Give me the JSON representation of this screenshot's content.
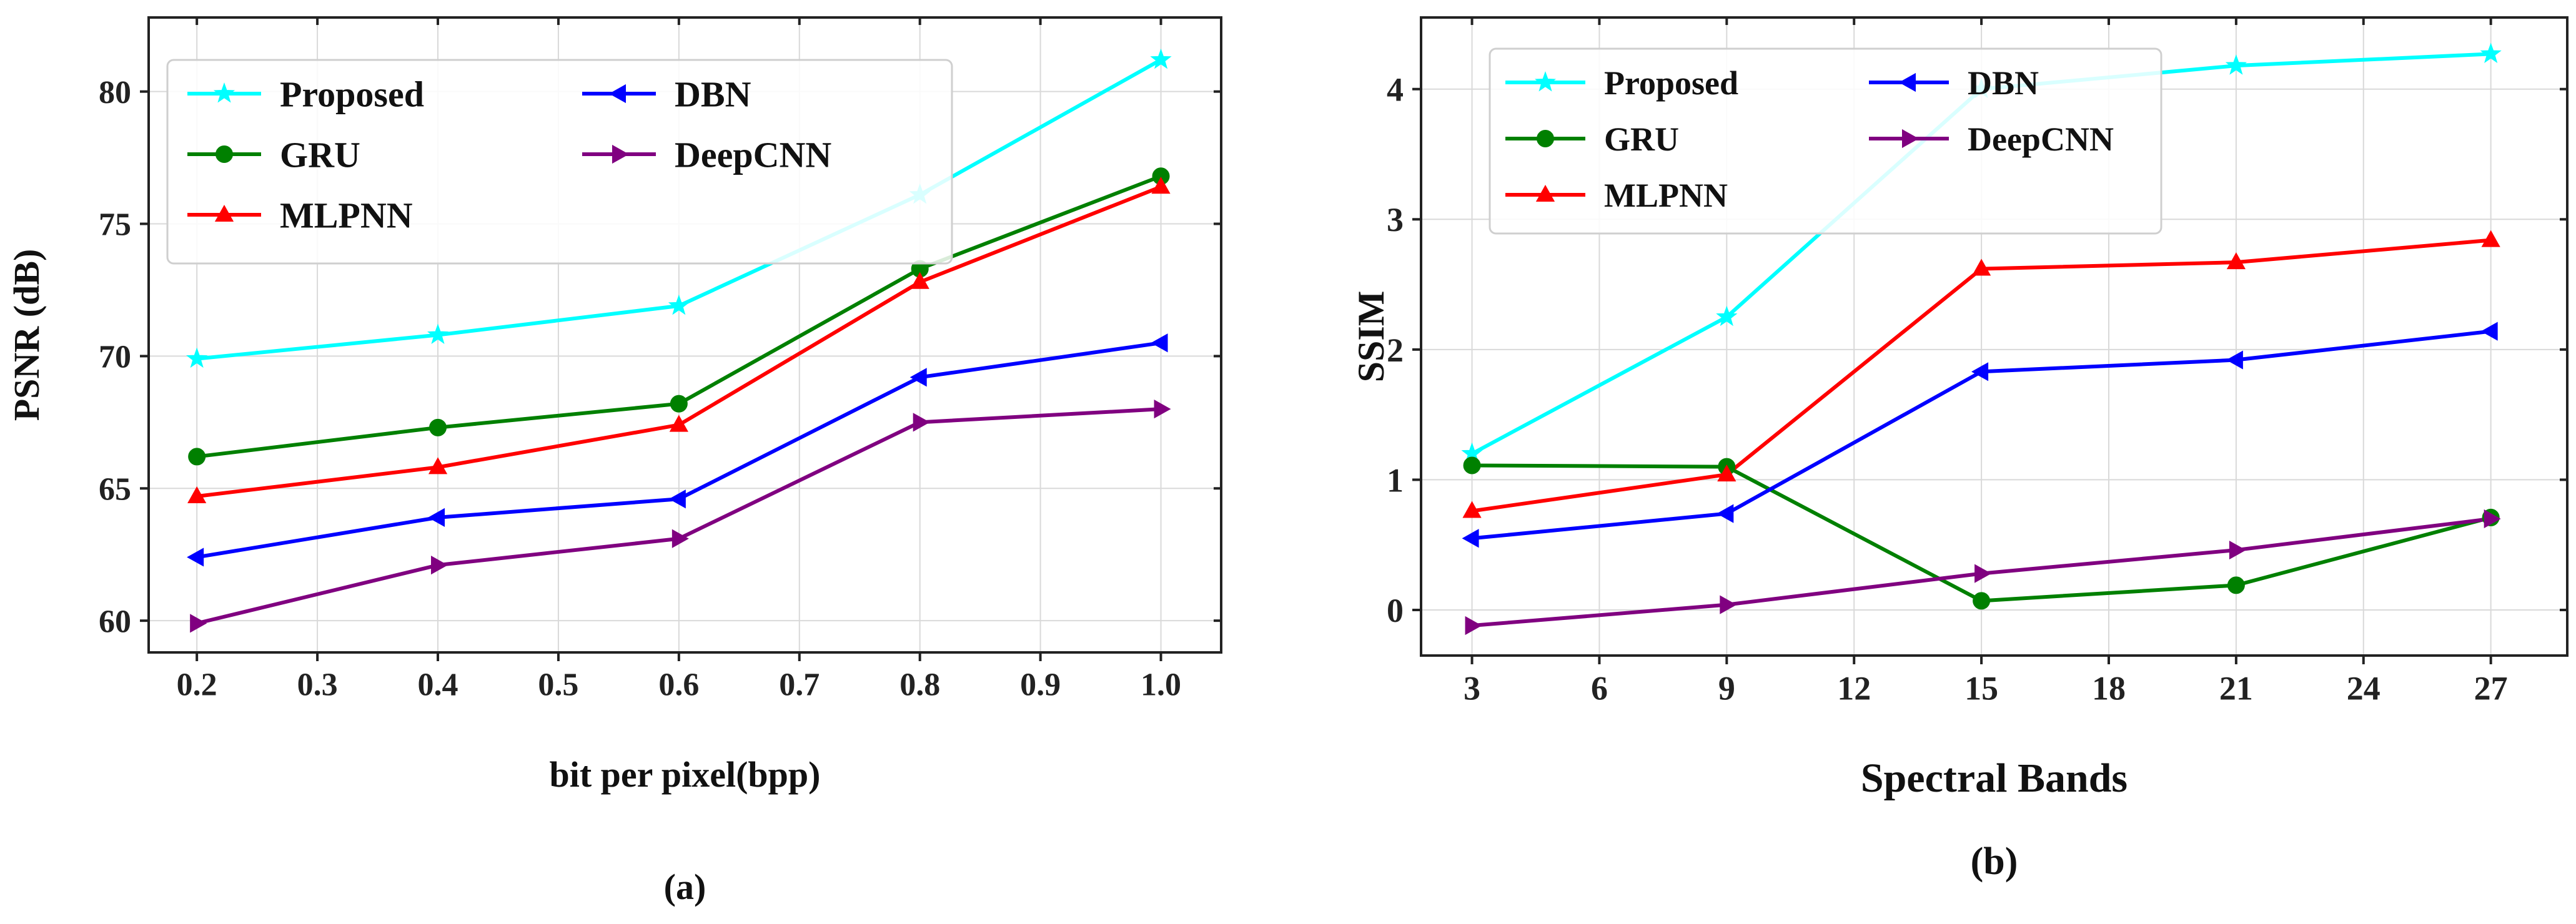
{
  "chart_data": [
    {
      "type": "line",
      "panel_label": "(a)",
      "xlabel": "bit per pixel(bpp)",
      "ylabel": "PSNR (dB)",
      "xlim": [
        0.16,
        1.05
      ],
      "ylim": [
        58.8,
        82.8
      ],
      "xticks": [
        0.2,
        0.3,
        0.4,
        0.5,
        0.6,
        0.7,
        0.8,
        0.9,
        1.0
      ],
      "xtick_labels": [
        "0.2",
        "0.3",
        "0.4",
        "0.5",
        "0.6",
        "0.7",
        "0.8",
        "0.9",
        "1.0"
      ],
      "yticks": [
        60,
        65,
        70,
        75,
        80
      ],
      "ytick_labels": [
        "60",
        "65",
        "70",
        "75",
        "80"
      ],
      "grid": true,
      "legend_position": "top-left",
      "legend_columns": 2,
      "x": [
        0.2,
        0.4,
        0.6,
        0.8,
        1.0
      ],
      "series": [
        {
          "name": "Proposed",
          "color": "#00ffff",
          "marker": "star",
          "values": [
            69.9,
            70.8,
            71.9,
            76.1,
            81.2
          ]
        },
        {
          "name": "GRU",
          "color": "#008000",
          "marker": "circle",
          "values": [
            66.2,
            67.3,
            68.2,
            73.3,
            76.8
          ]
        },
        {
          "name": "MLPNN",
          "color": "#ff0000",
          "marker": "triangle-up",
          "values": [
            64.7,
            65.8,
            67.4,
            72.8,
            76.4
          ]
        },
        {
          "name": "DBN",
          "color": "#0000ff",
          "marker": "triangle-left",
          "values": [
            62.4,
            63.9,
            64.6,
            69.2,
            70.5
          ]
        },
        {
          "name": "DeepCNN",
          "color": "#800080",
          "marker": "triangle-right",
          "values": [
            59.9,
            62.1,
            63.1,
            67.5,
            68.0
          ]
        }
      ]
    },
    {
      "type": "line",
      "panel_label": "(b)",
      "xlabel": "Spectral Bands",
      "ylabel": "SSIM",
      "xlim": [
        1.8,
        28.8
      ],
      "ylim": [
        -0.35,
        4.55
      ],
      "xticks": [
        3,
        6,
        9,
        12,
        15,
        18,
        21,
        24,
        27
      ],
      "xtick_labels": [
        "3",
        "6",
        "9",
        "12",
        "15",
        "18",
        "21",
        "24",
        "27"
      ],
      "yticks": [
        0,
        1,
        2,
        3,
        4
      ],
      "ytick_labels": [
        "0",
        "1",
        "2",
        "3",
        "4"
      ],
      "grid": true,
      "legend_position": "top-left",
      "legend_columns": 2,
      "x": [
        3,
        9,
        15,
        21,
        27
      ],
      "series": [
        {
          "name": "Proposed",
          "color": "#00ffff",
          "marker": "star",
          "values": [
            1.2,
            2.25,
            4.0,
            4.18,
            4.27
          ]
        },
        {
          "name": "GRU",
          "color": "#008000",
          "marker": "circle",
          "values": [
            1.11,
            1.1,
            0.07,
            0.19,
            0.71
          ]
        },
        {
          "name": "MLPNN",
          "color": "#ff0000",
          "marker": "triangle-up",
          "values": [
            0.76,
            1.04,
            2.62,
            2.67,
            2.84
          ]
        },
        {
          "name": "DBN",
          "color": "#0000ff",
          "marker": "triangle-left",
          "values": [
            0.55,
            0.74,
            1.83,
            1.92,
            2.14
          ]
        },
        {
          "name": "DeepCNN",
          "color": "#800080",
          "marker": "triangle-right",
          "values": [
            -0.12,
            0.04,
            0.28,
            0.46,
            0.7
          ]
        }
      ]
    }
  ]
}
